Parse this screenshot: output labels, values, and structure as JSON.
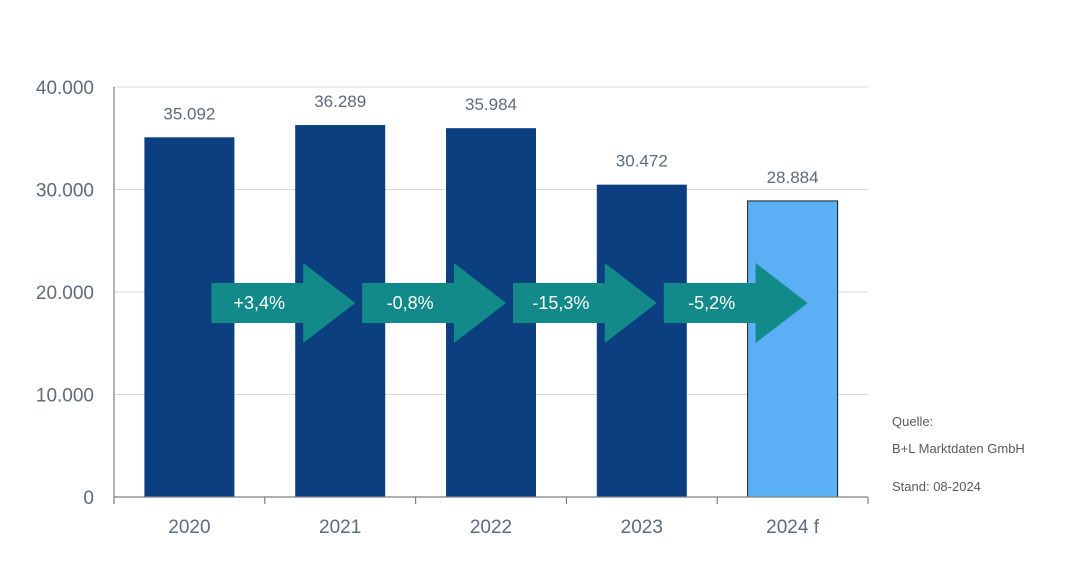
{
  "chart_data": {
    "type": "bar",
    "categories": [
      "2020",
      "2021",
      "2022",
      "2023",
      "2024 f"
    ],
    "values": [
      35092,
      36289,
      35984,
      30472,
      28884
    ],
    "value_labels": [
      "35.092",
      "36.289",
      "35.984",
      "30.472",
      "28.884"
    ],
    "y_ticks": [
      "0",
      "10.000",
      "20.000",
      "30.000",
      "40.000"
    ],
    "ylim": [
      0,
      40000
    ],
    "grid": true,
    "bar_colors": [
      "#0b3f80",
      "#0b3f80",
      "#0b3f80",
      "#0b3f80",
      "#5aaff5"
    ],
    "changes": [
      "+3,4%",
      "-0,8%",
      "-15,3%",
      "-5,2%"
    ],
    "arrow_color": "#138a8a"
  },
  "source": {
    "label": "Quelle:",
    "name": "B+L Marktdaten GmbH",
    "date": "Stand: 08-2024"
  }
}
